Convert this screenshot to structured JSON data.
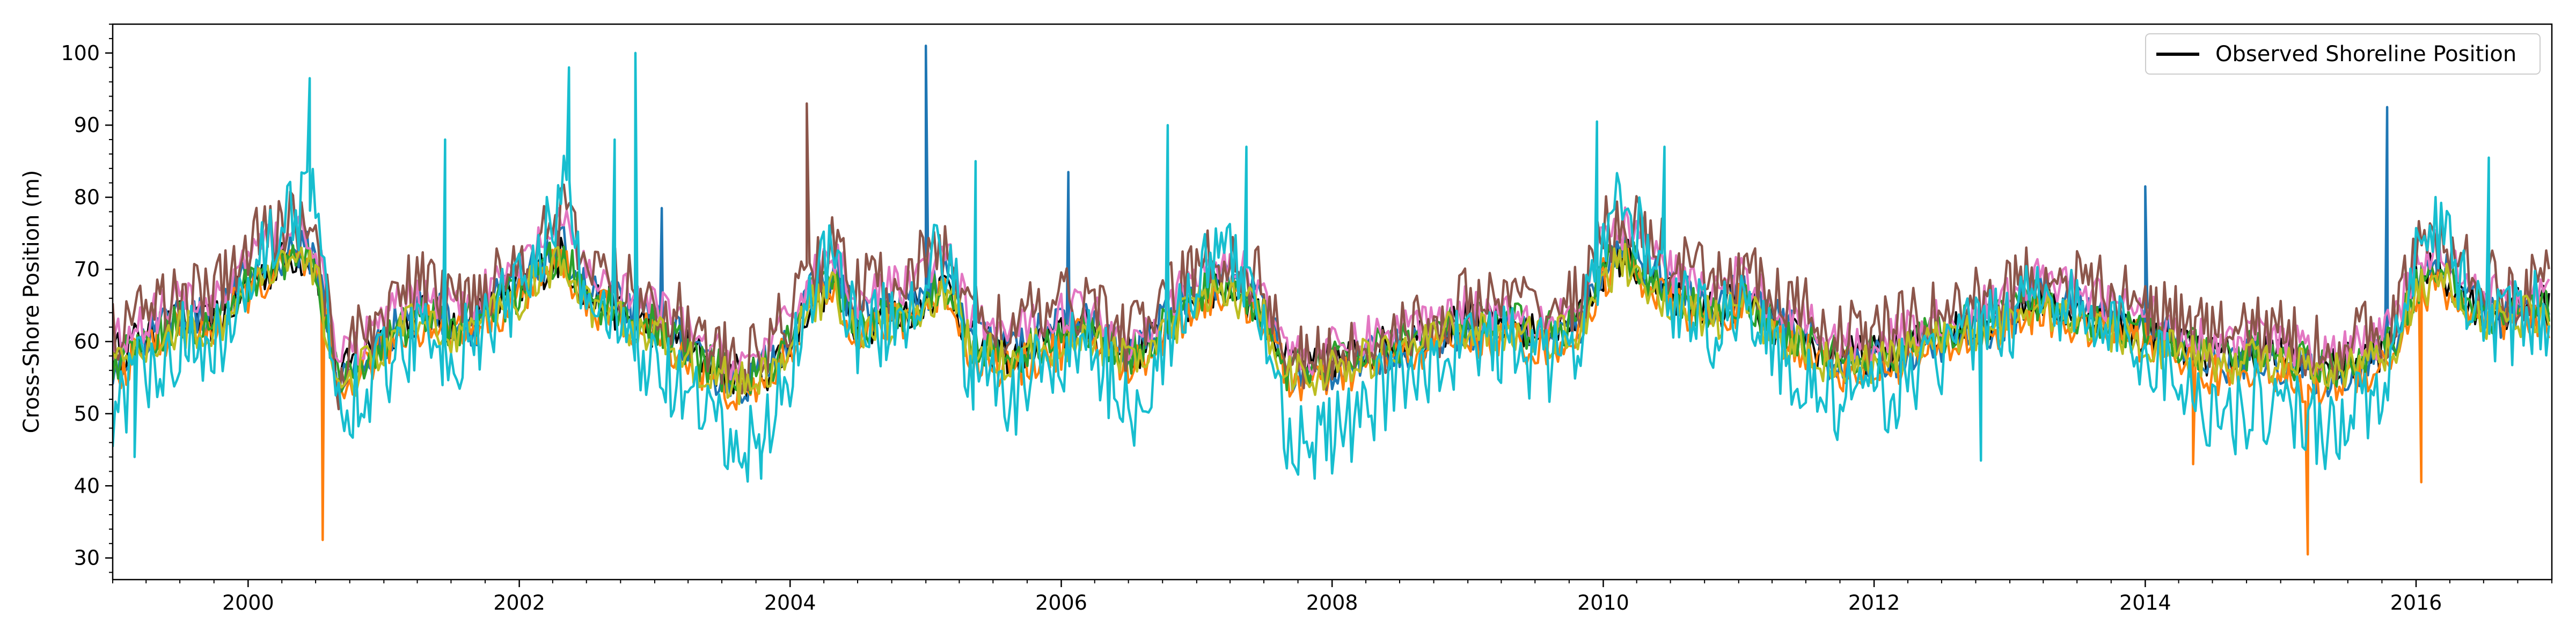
{
  "chart_data": {
    "type": "line",
    "title": "",
    "xlabel": "",
    "ylabel": "Cross-Shore Position (m)",
    "xlim": [
      "1999-01-01",
      "2017-01-01"
    ],
    "ylim": [
      27,
      104
    ],
    "x_ticks": [
      "2000",
      "2002",
      "2004",
      "2006",
      "2008",
      "2010",
      "2012",
      "2014",
      "2016"
    ],
    "y_ticks": [
      "30",
      "40",
      "50",
      "60",
      "70",
      "80",
      "90",
      "100"
    ],
    "grid": false,
    "legend": {
      "position": "top-right",
      "entries": [
        "Observed Shoreline Position"
      ]
    },
    "approximate_sampling": "monthly values for the main envelope, with visible spike extremes listed separately",
    "x": [
      "1999-01-01",
      "1999-03-01",
      "1999-05-01",
      "1999-07-01",
      "1999-09-01",
      "1999-11-01",
      "2000-01-01",
      "2000-03-01",
      "2000-05-01",
      "2000-07-01",
      "2000-09-01",
      "2000-11-01",
      "2001-01-01",
      "2001-03-01",
      "2001-05-01",
      "2001-07-01",
      "2001-09-01",
      "2001-11-01",
      "2002-01-01",
      "2002-03-01",
      "2002-05-01",
      "2002-07-01",
      "2002-09-01",
      "2002-11-01",
      "2003-01-01",
      "2003-03-01",
      "2003-05-01",
      "2003-07-01",
      "2003-09-01",
      "2003-11-01",
      "2004-01-01",
      "2004-03-01",
      "2004-05-01",
      "2004-07-01",
      "2004-09-01",
      "2004-11-01",
      "2005-01-01",
      "2005-03-01",
      "2005-05-01",
      "2005-07-01",
      "2005-09-01",
      "2005-11-01",
      "2006-01-01",
      "2006-03-01",
      "2006-05-01",
      "2006-07-01",
      "2006-09-01",
      "2006-11-01",
      "2007-01-01",
      "2007-03-01",
      "2007-05-01",
      "2007-07-01",
      "2007-09-01",
      "2007-11-01",
      "2008-01-01",
      "2008-03-01",
      "2008-05-01",
      "2008-07-01",
      "2008-09-01",
      "2008-11-01",
      "2009-01-01",
      "2009-03-01",
      "2009-05-01",
      "2009-07-01",
      "2009-09-01",
      "2009-11-01",
      "2010-01-01",
      "2010-03-01",
      "2010-05-01",
      "2010-07-01",
      "2010-09-01",
      "2010-11-01",
      "2011-01-01",
      "2011-03-01",
      "2011-05-01",
      "2011-07-01",
      "2011-09-01",
      "2011-11-01",
      "2012-01-01",
      "2012-03-01",
      "2012-05-01",
      "2012-07-01",
      "2012-09-01",
      "2012-11-01",
      "2013-01-01",
      "2013-03-01",
      "2013-05-01",
      "2013-07-01",
      "2013-09-01",
      "2013-11-01",
      "2014-01-01",
      "2014-03-01",
      "2014-05-01",
      "2014-07-01",
      "2014-09-01",
      "2014-11-01",
      "2015-01-01",
      "2015-03-01",
      "2015-05-01",
      "2015-07-01",
      "2015-09-01",
      "2015-11-01",
      "2016-01-01",
      "2016-03-01",
      "2016-05-01",
      "2016-07-01",
      "2016-09-01",
      "2016-11-01"
    ],
    "series": [
      {
        "name": "Observed Shoreline Position",
        "color": "#000000",
        "values": [
          58,
          60,
          61,
          63,
          62,
          64,
          68,
          70,
          72,
          71,
          55,
          58,
          61,
          63,
          64,
          62,
          63,
          65,
          67,
          70,
          72,
          66,
          65,
          63,
          62,
          60,
          58,
          56,
          55,
          56,
          60,
          66,
          68,
          62,
          63,
          64,
          66,
          68,
          60,
          59,
          58,
          60,
          61,
          62,
          60,
          58,
          60,
          63,
          66,
          68,
          67,
          64,
          57,
          56,
          57,
          58,
          59,
          60,
          61,
          62,
          63,
          62,
          63,
          61,
          62,
          63,
          70,
          72,
          69,
          66,
          65,
          64,
          66,
          64,
          61,
          60,
          58,
          58,
          58,
          59,
          60,
          61,
          62,
          63,
          64,
          66,
          65,
          64,
          63,
          62,
          61,
          60,
          59,
          58,
          58,
          59,
          58,
          57,
          56,
          57,
          58,
          60,
          68,
          70,
          67,
          64,
          64,
          65
        ]
      },
      {
        "color": "#1f77b4",
        "values": [
          56,
          59,
          62,
          64,
          63,
          65,
          69,
          71,
          73,
          72,
          54,
          57,
          60,
          64,
          65,
          63,
          62,
          66,
          68,
          71,
          73,
          67,
          66,
          64,
          63,
          61,
          57,
          55,
          54,
          57,
          61,
          67,
          70,
          63,
          64,
          65,
          67,
          69,
          61,
          60,
          59,
          61,
          62,
          63,
          61,
          57,
          61,
          64,
          67,
          69,
          68,
          65,
          56,
          55,
          56,
          57,
          58,
          59,
          60,
          61,
          62,
          61,
          62,
          60,
          61,
          62,
          71,
          73,
          70,
          67,
          66,
          65,
          67,
          65,
          62,
          61,
          57,
          57,
          57,
          58,
          59,
          60,
          61,
          62,
          63,
          67,
          66,
          65,
          64,
          63,
          62,
          61,
          58,
          57,
          57,
          58,
          57,
          56,
          55,
          56,
          57,
          59,
          69,
          71,
          68,
          65,
          63,
          64
        ]
      },
      {
        "color": "#ff7f0e",
        "values": [
          55,
          58,
          60,
          62,
          61,
          63,
          67,
          69,
          71,
          70,
          52,
          56,
          59,
          61,
          63,
          61,
          62,
          64,
          66,
          69,
          71,
          65,
          64,
          62,
          61,
          59,
          56,
          54,
          52,
          55,
          59,
          65,
          67,
          61,
          62,
          63,
          65,
          67,
          58,
          57,
          56,
          58,
          59,
          61,
          59,
          56,
          59,
          62,
          65,
          67,
          66,
          63,
          55,
          54,
          55,
          56,
          57,
          58,
          59,
          60,
          61,
          60,
          61,
          59,
          60,
          61,
          69,
          71,
          68,
          65,
          64,
          63,
          65,
          63,
          60,
          59,
          56,
          56,
          56,
          57,
          58,
          59,
          60,
          61,
          62,
          64,
          63,
          62,
          62,
          61,
          60,
          59,
          57,
          55,
          56,
          57,
          55,
          53,
          54,
          55,
          56,
          58,
          66,
          68,
          65,
          62,
          62,
          63
        ]
      },
      {
        "color": "#2ca02c",
        "values": [
          57,
          59,
          61,
          63,
          62,
          64,
          68,
          70,
          72,
          71,
          54,
          57,
          60,
          62,
          64,
          62,
          63,
          65,
          67,
          70,
          72,
          66,
          65,
          63,
          62,
          60,
          57,
          56,
          55,
          56,
          60,
          66,
          68,
          62,
          63,
          64,
          66,
          68,
          60,
          59,
          58,
          60,
          61,
          62,
          60,
          58,
          60,
          63,
          66,
          68,
          67,
          64,
          56,
          56,
          57,
          58,
          59,
          60,
          61,
          62,
          63,
          62,
          63,
          61,
          62,
          63,
          70,
          72,
          69,
          66,
          65,
          64,
          66,
          64,
          61,
          60,
          58,
          58,
          58,
          59,
          60,
          61,
          62,
          63,
          64,
          66,
          65,
          64,
          63,
          62,
          61,
          60,
          59,
          58,
          58,
          59,
          58,
          57,
          56,
          57,
          58,
          60,
          68,
          70,
          67,
          64,
          64,
          65
        ]
      },
      {
        "color": "#e377c2",
        "values": [
          60,
          62,
          64,
          66,
          65,
          67,
          72,
          74,
          76,
          74,
          57,
          60,
          63,
          66,
          67,
          65,
          66,
          68,
          70,
          74,
          76,
          70,
          68,
          66,
          65,
          63,
          60,
          58,
          57,
          59,
          63,
          70,
          72,
          66,
          67,
          68,
          70,
          72,
          63,
          62,
          61,
          63,
          64,
          65,
          63,
          60,
          63,
          66,
          69,
          71,
          70,
          67,
          59,
          58,
          59,
          60,
          61,
          62,
          63,
          64,
          65,
          64,
          65,
          63,
          64,
          65,
          74,
          76,
          73,
          70,
          68,
          67,
          69,
          67,
          64,
          63,
          60,
          60,
          60,
          61,
          62,
          63,
          64,
          65,
          66,
          69,
          68,
          67,
          66,
          65,
          64,
          63,
          61,
          60,
          60,
          61,
          60,
          59,
          58,
          59,
          60,
          62,
          71,
          73,
          70,
          67,
          66,
          67
        ]
      },
      {
        "color": "#8c564b",
        "values": [
          61,
          64,
          65,
          67,
          66,
          68,
          73,
          75,
          77,
          75,
          55,
          61,
          64,
          67,
          68,
          66,
          67,
          69,
          71,
          75,
          77,
          71,
          69,
          67,
          66,
          64,
          60,
          58,
          56,
          60,
          64,
          71,
          73,
          67,
          68,
          69,
          71,
          73,
          64,
          63,
          62,
          64,
          65,
          66,
          64,
          60,
          64,
          67,
          70,
          72,
          71,
          68,
          58,
          57,
          58,
          59,
          60,
          61,
          62,
          63,
          66,
          65,
          66,
          64,
          65,
          66,
          75,
          77,
          74,
          71,
          69,
          68,
          70,
          68,
          65,
          64,
          61,
          61,
          61,
          62,
          63,
          64,
          65,
          66,
          67,
          70,
          69,
          68,
          67,
          66,
          65,
          64,
          62,
          61,
          61,
          62,
          61,
          60,
          59,
          60,
          61,
          63,
          72,
          74,
          71,
          68,
          67,
          68
        ]
      },
      {
        "color": "#bcbd22",
        "values": [
          57,
          58,
          60,
          62,
          61,
          63,
          67,
          69,
          71,
          70,
          53,
          56,
          59,
          62,
          63,
          61,
          62,
          64,
          66,
          69,
          71,
          65,
          64,
          62,
          61,
          59,
          56,
          55,
          54,
          55,
          59,
          65,
          67,
          61,
          62,
          63,
          65,
          67,
          59,
          58,
          57,
          59,
          60,
          61,
          59,
          57,
          59,
          62,
          65,
          67,
          66,
          63,
          56,
          55,
          56,
          57,
          58,
          59,
          60,
          61,
          62,
          61,
          62,
          60,
          61,
          62,
          69,
          71,
          68,
          65,
          64,
          63,
          65,
          63,
          60,
          59,
          57,
          57,
          57,
          58,
          59,
          60,
          61,
          62,
          63,
          65,
          64,
          63,
          62,
          61,
          60,
          59,
          58,
          57,
          57,
          58,
          57,
          56,
          55,
          56,
          57,
          59,
          67,
          69,
          66,
          63,
          63,
          64
        ]
      },
      {
        "color": "#17becf",
        "values": [
          50,
          55,
          58,
          60,
          58,
          62,
          70,
          74,
          78,
          80,
          50,
          54,
          56,
          60,
          62,
          58,
          60,
          63,
          68,
          74,
          80,
          66,
          63,
          58,
          56,
          54,
          50,
          47,
          44,
          49,
          56,
          68,
          73,
          60,
          62,
          64,
          70,
          72,
          55,
          54,
          52,
          57,
          58,
          60,
          56,
          50,
          56,
          62,
          68,
          72,
          70,
          62,
          48,
          46,
          47,
          49,
          52,
          55,
          57,
          58,
          60,
          59,
          60,
          57,
          58,
          60,
          74,
          80,
          73,
          66,
          64,
          62,
          66,
          62,
          57,
          55,
          52,
          52,
          52,
          54,
          56,
          58,
          60,
          62,
          63,
          69,
          66,
          64,
          62,
          61,
          58,
          57,
          53,
          51,
          50,
          52,
          51,
          50,
          48,
          50,
          52,
          56,
          70,
          76,
          68,
          63,
          62,
          64
        ]
      }
    ],
    "spike_extremes": [
      {
        "date": "1999-03-01",
        "value": 44,
        "color": "#17becf"
      },
      {
        "date": "2000-06-15",
        "value": 96.5,
        "color": "#17becf"
      },
      {
        "date": "2000-07-20",
        "value": 32.5,
        "color": "#ff7f0e"
      },
      {
        "date": "2001-06-15",
        "value": 88,
        "color": "#17becf"
      },
      {
        "date": "2002-05-15",
        "value": 98,
        "color": "#17becf"
      },
      {
        "date": "2002-09-15",
        "value": 88,
        "color": "#17becf"
      },
      {
        "date": "2002-11-10",
        "value": 100,
        "color": "#17becf"
      },
      {
        "date": "2003-01-20",
        "value": 78.5,
        "color": "#1f77b4"
      },
      {
        "date": "2003-10-15",
        "value": 41,
        "color": "#17becf"
      },
      {
        "date": "2004-02-15",
        "value": 93,
        "color": "#8c564b"
      },
      {
        "date": "2005-01-01",
        "value": 101,
        "color": "#1f77b4"
      },
      {
        "date": "2005-05-15",
        "value": 85,
        "color": "#17becf"
      },
      {
        "date": "2006-01-20",
        "value": 83.5,
        "color": "#1f77b4"
      },
      {
        "date": "2006-10-15",
        "value": 90,
        "color": "#17becf"
      },
      {
        "date": "2007-05-15",
        "value": 87,
        "color": "#17becf"
      },
      {
        "date": "2007-11-15",
        "value": 41,
        "color": "#17becf"
      },
      {
        "date": "2009-12-15",
        "value": 90.5,
        "color": "#17becf"
      },
      {
        "date": "2010-06-15",
        "value": 87,
        "color": "#17becf"
      },
      {
        "date": "2012-10-15",
        "value": 43.5,
        "color": "#17becf"
      },
      {
        "date": "2014-01-01",
        "value": 81.5,
        "color": "#1f77b4"
      },
      {
        "date": "2014-05-10",
        "value": 43,
        "color": "#ff7f0e"
      },
      {
        "date": "2015-03-15",
        "value": 30.5,
        "color": "#ff7f0e"
      },
      {
        "date": "2015-10-15",
        "value": 92.5,
        "color": "#1f77b4"
      },
      {
        "date": "2016-01-15",
        "value": 40.5,
        "color": "#ff7f0e"
      },
      {
        "date": "2016-07-15",
        "value": 85.5,
        "color": "#17becf"
      }
    ]
  }
}
